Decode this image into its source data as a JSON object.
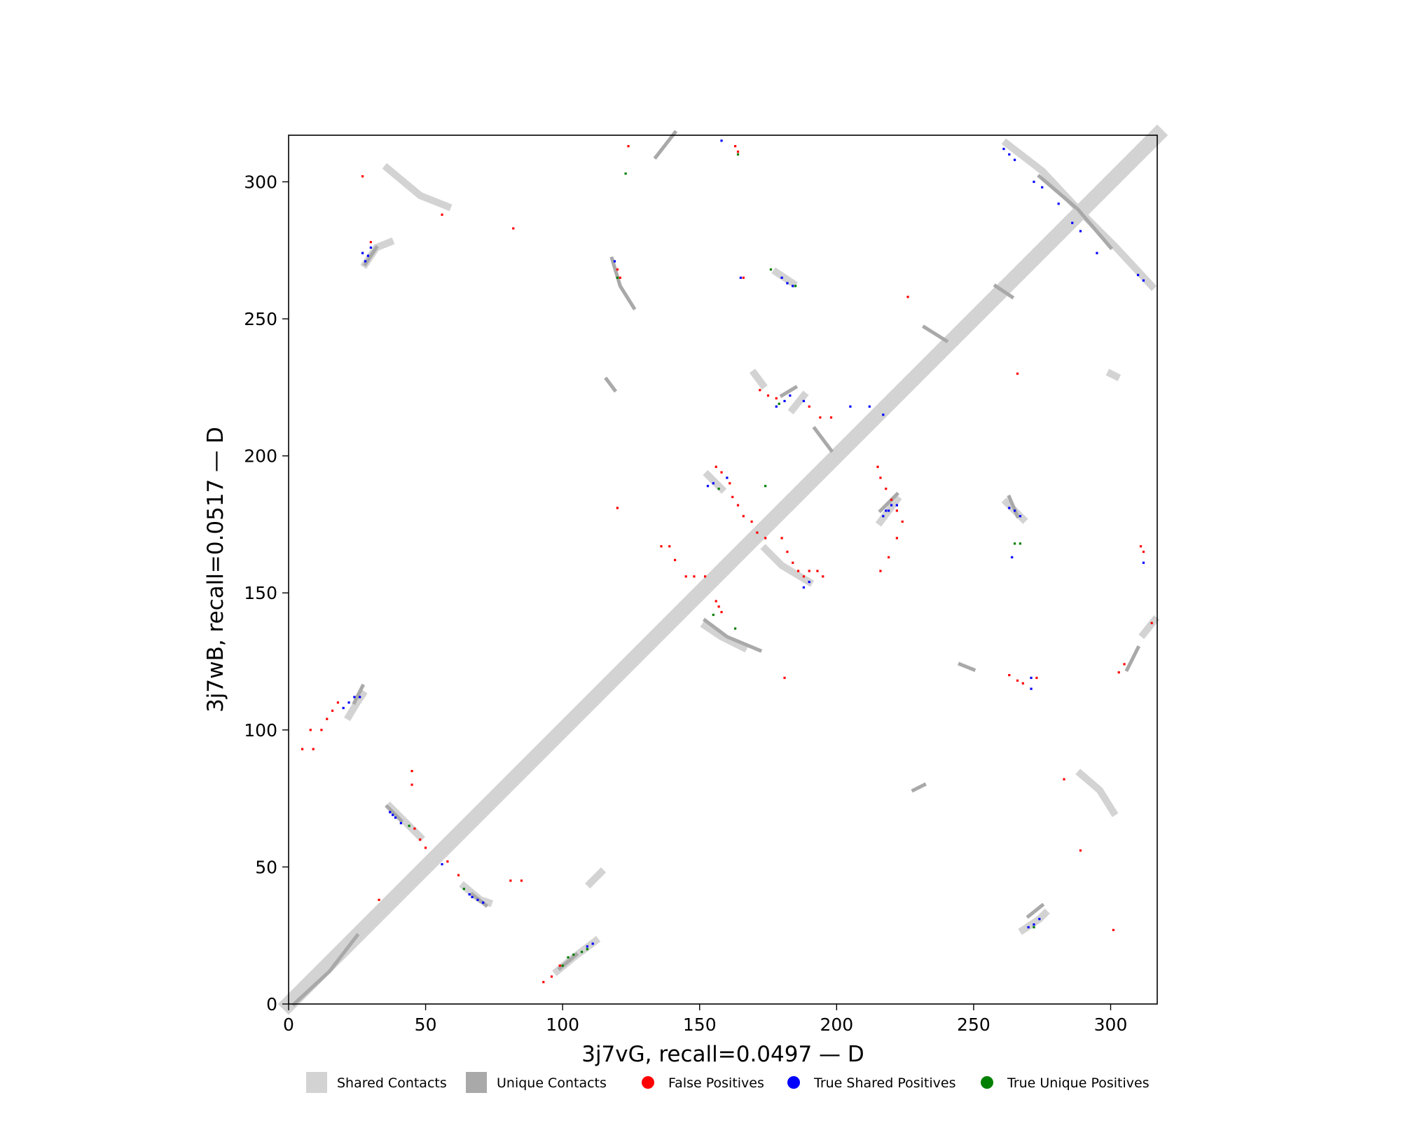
{
  "chart_data": {
    "type": "heatmap",
    "title": "",
    "xlabel": "3j7vG, recall=0.0497 — D",
    "ylabel": "3j7wB, recall=0.0517 — D",
    "xlim": [
      0,
      317
    ],
    "ylim": [
      0,
      317
    ],
    "xticks": [
      0,
      50,
      100,
      150,
      200,
      250,
      300
    ],
    "yticks": [
      0,
      50,
      100,
      150,
      200,
      250,
      300
    ],
    "grid": false,
    "legend_position": "bottom-center",
    "colors": {
      "shared": "#d3d3d3",
      "unique": "#a9a9a9",
      "false_positive": "#ff0000",
      "true_shared": "#0000ff",
      "true_unique": "#008000"
    },
    "legend": [
      {
        "label": "Shared Contacts",
        "kind": "square",
        "color": "#d3d3d3"
      },
      {
        "label": "Unique Contacts",
        "kind": "square",
        "color": "#a9a9a9"
      },
      {
        "label": "False Positives",
        "kind": "dot",
        "color": "#ff0000"
      },
      {
        "label": "True Shared Positives",
        "kind": "dot",
        "color": "#0000ff"
      },
      {
        "label": "True Unique Positives",
        "kind": "dot",
        "color": "#008000"
      }
    ],
    "diagonal_band": {
      "from": 0,
      "to": 317,
      "half_width": 2.5
    },
    "shared_contacts": [
      [
        [
          36,
          305
        ],
        [
          48,
          295
        ],
        [
          58,
          291
        ]
      ],
      [
        [
          28,
          270
        ],
        [
          32,
          276
        ],
        [
          37,
          278
        ]
      ],
      [
        [
          22,
          105
        ],
        [
          25,
          110
        ],
        [
          27,
          113
        ]
      ],
      [
        [
          37,
          72
        ],
        [
          42,
          67
        ],
        [
          48,
          61
        ]
      ],
      [
        [
          64,
          43
        ],
        [
          70,
          38
        ],
        [
          73,
          37
        ]
      ],
      [
        [
          98,
          12
        ],
        [
          104,
          17
        ],
        [
          112,
          23
        ]
      ],
      [
        [
          262,
          314
        ],
        [
          275,
          304
        ],
        [
          290,
          288
        ],
        [
          302,
          276
        ],
        [
          315,
          262
        ]
      ],
      [
        [
          178,
          267
        ],
        [
          184,
          263
        ]
      ],
      [
        [
          184,
          217
        ],
        [
          188,
          222
        ]
      ],
      [
        [
          153,
          193
        ],
        [
          158,
          188
        ]
      ],
      [
        [
          152,
          138
        ],
        [
          158,
          134
        ],
        [
          166,
          130
        ]
      ],
      [
        [
          174,
          166
        ],
        [
          180,
          160
        ],
        [
          190,
          154
        ]
      ],
      [
        [
          216,
          176
        ],
        [
          222,
          184
        ]
      ],
      [
        [
          262,
          183
        ],
        [
          268,
          177
        ]
      ],
      [
        [
          268,
          27
        ],
        [
          274,
          31
        ],
        [
          276,
          33
        ]
      ],
      [
        [
          289,
          84
        ],
        [
          296,
          78
        ],
        [
          301,
          70
        ]
      ],
      [
        [
          312,
          135
        ],
        [
          316,
          140
        ]
      ],
      [
        [
          110,
          44
        ],
        [
          114,
          48
        ]
      ],
      [
        [
          170,
          230
        ],
        [
          173,
          226
        ]
      ],
      [
        [
          300,
          230
        ],
        [
          302,
          229
        ]
      ]
    ],
    "unique_contacts": [
      [
        [
          2,
          0
        ],
        [
          15,
          12
        ],
        [
          25,
          25
        ]
      ],
      [
        [
          36,
          72
        ],
        [
          41,
          67
        ]
      ],
      [
        [
          67,
          40
        ],
        [
          72,
          36
        ]
      ],
      [
        [
          99,
          13
        ],
        [
          105,
          18
        ]
      ],
      [
        [
          28,
          270
        ],
        [
          32,
          276
        ]
      ],
      [
        [
          24,
          110
        ],
        [
          27,
          116
        ]
      ],
      [
        [
          274,
          302
        ],
        [
          288,
          290
        ],
        [
          300,
          276
        ]
      ],
      [
        [
          118,
          272
        ],
        [
          121,
          262
        ],
        [
          126,
          254
        ]
      ],
      [
        [
          152,
          140
        ],
        [
          160,
          134
        ],
        [
          172,
          129
        ]
      ],
      [
        [
          180,
          222
        ],
        [
          185,
          225
        ]
      ],
      [
        [
          216,
          180
        ],
        [
          222,
          186
        ]
      ],
      [
        [
          263,
          185
        ],
        [
          266,
          178
        ]
      ],
      [
        [
          232,
          247
        ],
        [
          240,
          242
        ]
      ],
      [
        [
          228,
          78
        ],
        [
          232,
          80
        ]
      ],
      [
        [
          270,
          32
        ],
        [
          275,
          36
        ]
      ],
      [
        [
          306,
          122
        ],
        [
          310,
          130
        ]
      ],
      [
        [
          134,
          309
        ],
        [
          141,
          318
        ]
      ],
      [
        [
          192,
          210
        ],
        [
          198,
          202
        ]
      ],
      [
        [
          258,
          262
        ],
        [
          264,
          258
        ]
      ],
      [
        [
          116,
          228
        ],
        [
          119,
          224
        ]
      ],
      [
        [
          245,
          124
        ],
        [
          250,
          122
        ]
      ]
    ],
    "false_positives": [
      [
        27,
        302
      ],
      [
        56,
        288
      ],
      [
        82,
        283
      ],
      [
        30,
        278
      ],
      [
        8,
        100
      ],
      [
        9,
        93
      ],
      [
        12,
        100
      ],
      [
        14,
        104
      ],
      [
        16,
        107
      ],
      [
        18,
        110
      ],
      [
        5,
        93
      ],
      [
        45,
        85
      ],
      [
        45,
        80
      ],
      [
        46,
        64
      ],
      [
        48,
        60
      ],
      [
        50,
        57
      ],
      [
        58,
        52
      ],
      [
        62,
        47
      ],
      [
        81,
        45
      ],
      [
        85,
        45
      ],
      [
        33,
        38
      ],
      [
        93,
        8
      ],
      [
        96,
        10
      ],
      [
        99,
        14
      ],
      [
        120,
        268
      ],
      [
        121,
        265
      ],
      [
        124,
        313
      ],
      [
        163,
        313
      ],
      [
        164,
        311
      ],
      [
        166,
        265
      ],
      [
        156,
        196
      ],
      [
        158,
        194
      ],
      [
        161,
        190
      ],
      [
        162,
        185
      ],
      [
        164,
        182
      ],
      [
        166,
        178
      ],
      [
        169,
        176
      ],
      [
        171,
        172
      ],
      [
        174,
        170
      ],
      [
        136,
        167
      ],
      [
        139,
        167
      ],
      [
        141,
        162
      ],
      [
        145,
        156
      ],
      [
        148,
        156
      ],
      [
        152,
        156
      ],
      [
        156,
        147
      ],
      [
        157,
        145
      ],
      [
        158,
        143
      ],
      [
        180,
        170
      ],
      [
        182,
        165
      ],
      [
        184,
        161
      ],
      [
        186,
        158
      ],
      [
        188,
        156
      ],
      [
        190,
        158
      ],
      [
        193,
        158
      ],
      [
        195,
        156
      ],
      [
        172,
        224
      ],
      [
        175,
        222
      ],
      [
        178,
        221
      ],
      [
        190,
        218
      ],
      [
        194,
        214
      ],
      [
        198,
        214
      ],
      [
        215,
        196
      ],
      [
        216,
        192
      ],
      [
        218,
        188
      ],
      [
        220,
        184
      ],
      [
        222,
        180
      ],
      [
        224,
        176
      ],
      [
        216,
        158
      ],
      [
        219,
        163
      ],
      [
        222,
        170
      ],
      [
        120,
        181
      ],
      [
        181,
        119
      ],
      [
        226,
        258
      ],
      [
        266,
        230
      ],
      [
        263,
        120
      ],
      [
        266,
        118
      ],
      [
        268,
        117
      ],
      [
        273,
        119
      ],
      [
        311,
        167
      ],
      [
        312,
        165
      ],
      [
        315,
        139
      ],
      [
        303,
        121
      ],
      [
        305,
        124
      ],
      [
        283,
        82
      ],
      [
        289,
        56
      ],
      [
        301,
        27
      ]
    ],
    "true_shared_positives": [
      [
        27,
        274
      ],
      [
        28,
        271
      ],
      [
        29,
        273
      ],
      [
        30,
        276
      ],
      [
        20,
        108
      ],
      [
        22,
        110
      ],
      [
        24,
        112
      ],
      [
        26,
        112
      ],
      [
        37,
        70
      ],
      [
        38,
        69
      ],
      [
        39,
        68
      ],
      [
        41,
        66
      ],
      [
        56,
        51
      ],
      [
        66,
        40
      ],
      [
        67,
        39
      ],
      [
        69,
        38
      ],
      [
        71,
        37
      ],
      [
        109,
        21
      ],
      [
        111,
        22
      ],
      [
        158,
        315
      ],
      [
        261,
        312
      ],
      [
        263,
        310
      ],
      [
        265,
        308
      ],
      [
        272,
        300
      ],
      [
        275,
        298
      ],
      [
        281,
        292
      ],
      [
        286,
        285
      ],
      [
        289,
        282
      ],
      [
        295,
        274
      ],
      [
        310,
        266
      ],
      [
        312,
        264
      ],
      [
        119,
        271
      ],
      [
        165,
        265
      ],
      [
        180,
        265
      ],
      [
        182,
        263
      ],
      [
        184,
        262
      ],
      [
        178,
        218
      ],
      [
        181,
        220
      ],
      [
        183,
        222
      ],
      [
        188,
        220
      ],
      [
        205,
        218
      ],
      [
        212,
        218
      ],
      [
        217,
        215
      ],
      [
        153,
        189
      ],
      [
        155,
        190
      ],
      [
        160,
        192
      ],
      [
        188,
        152
      ],
      [
        190,
        154
      ],
      [
        217,
        178
      ],
      [
        218,
        180
      ],
      [
        219,
        180
      ],
      [
        220,
        182
      ],
      [
        222,
        182
      ],
      [
        263,
        181
      ],
      [
        265,
        180
      ],
      [
        267,
        178
      ],
      [
        264,
        163
      ],
      [
        270,
        28
      ],
      [
        272,
        29
      ],
      [
        274,
        31
      ],
      [
        271,
        119
      ],
      [
        271,
        115
      ],
      [
        312,
        161
      ]
    ],
    "true_unique_positives": [
      [
        120,
        265
      ],
      [
        176,
        268
      ],
      [
        185,
        262
      ],
      [
        44,
        65
      ],
      [
        64,
        42
      ],
      [
        100,
        14
      ],
      [
        102,
        17
      ],
      [
        104,
        18
      ],
      [
        107,
        19
      ],
      [
        109,
        20
      ],
      [
        155,
        142
      ],
      [
        163,
        137
      ],
      [
        174,
        189
      ],
      [
        179,
        219
      ],
      [
        157,
        188
      ],
      [
        265,
        168
      ],
      [
        267,
        168
      ],
      [
        272,
        28
      ],
      [
        123,
        303
      ],
      [
        164,
        310
      ]
    ]
  }
}
